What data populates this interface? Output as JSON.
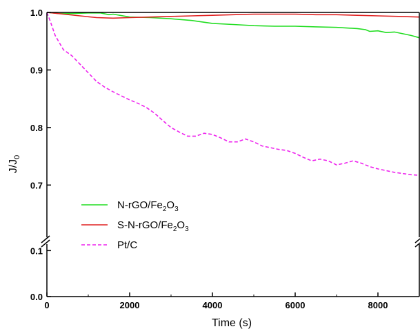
{
  "chart_data": {
    "type": "line",
    "title": "",
    "xlabel": "Time (s)",
    "ylabel": {
      "main": "J/J",
      "sub": "0"
    },
    "xlim": [
      0,
      9000
    ],
    "ylim_lower": [
      0.0,
      0.12
    ],
    "ylim_upper": [
      0.65,
      1.0
    ],
    "axis_break": true,
    "grid": false,
    "legend_placement": "bottom-left",
    "x_ticks": [
      "0",
      "2000",
      "4000",
      "6000",
      "8000"
    ],
    "y_ticks_lower": [
      "0.0",
      "0.1"
    ],
    "y_ticks_upper": [
      "0.7",
      "0.8",
      "0.9",
      "1.0"
    ],
    "series": [
      {
        "name": {
          "pre": "N-rGO/Fe",
          "sub1": "2",
          "mid": "O",
          "sub2": "3"
        },
        "color": "#22dd22",
        "style": "solid",
        "x": [
          0,
          300,
          600,
          1000,
          1300,
          1500,
          1600,
          2000,
          2500,
          3000,
          3500,
          4000,
          4500,
          5000,
          5500,
          6000,
          6500,
          7000,
          7500,
          7700,
          7800,
          8000,
          8200,
          8400,
          8600,
          8800,
          9000
        ],
        "y": [
          1.0,
          0.998,
          0.998,
          0.999,
          0.999,
          0.996,
          0.997,
          0.992,
          0.991,
          0.989,
          0.986,
          0.981,
          0.979,
          0.977,
          0.976,
          0.976,
          0.975,
          0.974,
          0.972,
          0.97,
          0.967,
          0.968,
          0.965,
          0.966,
          0.963,
          0.96,
          0.956
        ]
      },
      {
        "name": {
          "pre": "S-N-rGO/Fe",
          "sub1": "2",
          "mid": "O",
          "sub2": "3"
        },
        "color": "#e02020",
        "style": "solid",
        "x": [
          0,
          400,
          800,
          1200,
          1600,
          2000,
          2500,
          3000,
          3500,
          4000,
          4500,
          5000,
          5500,
          6000,
          6500,
          7000,
          7500,
          8000,
          8500,
          9000
        ],
        "y": [
          1.0,
          0.997,
          0.994,
          0.991,
          0.99,
          0.991,
          0.992,
          0.993,
          0.994,
          0.995,
          0.996,
          0.997,
          0.997,
          0.997,
          0.996,
          0.996,
          0.995,
          0.994,
          0.993,
          0.992
        ]
      },
      {
        "name": {
          "pre": "Pt/C",
          "sub1": "",
          "mid": "",
          "sub2": ""
        },
        "color": "#ee22ee",
        "style": "dashed",
        "x": [
          0,
          80,
          200,
          400,
          600,
          800,
          1000,
          1200,
          1400,
          1600,
          1800,
          2000,
          2200,
          2400,
          2600,
          2800,
          3000,
          3200,
          3400,
          3600,
          3800,
          4000,
          4200,
          4400,
          4600,
          4800,
          5000,
          5200,
          5400,
          5600,
          5800,
          6000,
          6200,
          6400,
          6600,
          6800,
          7000,
          7200,
          7400,
          7600,
          7800,
          8000,
          8200,
          8400,
          8600,
          8800,
          9000
        ],
        "y": [
          1.0,
          0.985,
          0.96,
          0.935,
          0.925,
          0.91,
          0.895,
          0.88,
          0.87,
          0.862,
          0.855,
          0.848,
          0.842,
          0.835,
          0.825,
          0.812,
          0.8,
          0.792,
          0.785,
          0.785,
          0.79,
          0.788,
          0.782,
          0.775,
          0.775,
          0.78,
          0.775,
          0.768,
          0.765,
          0.762,
          0.76,
          0.755,
          0.748,
          0.742,
          0.745,
          0.742,
          0.735,
          0.738,
          0.742,
          0.738,
          0.732,
          0.728,
          0.725,
          0.722,
          0.72,
          0.718,
          0.717
        ]
      }
    ]
  }
}
